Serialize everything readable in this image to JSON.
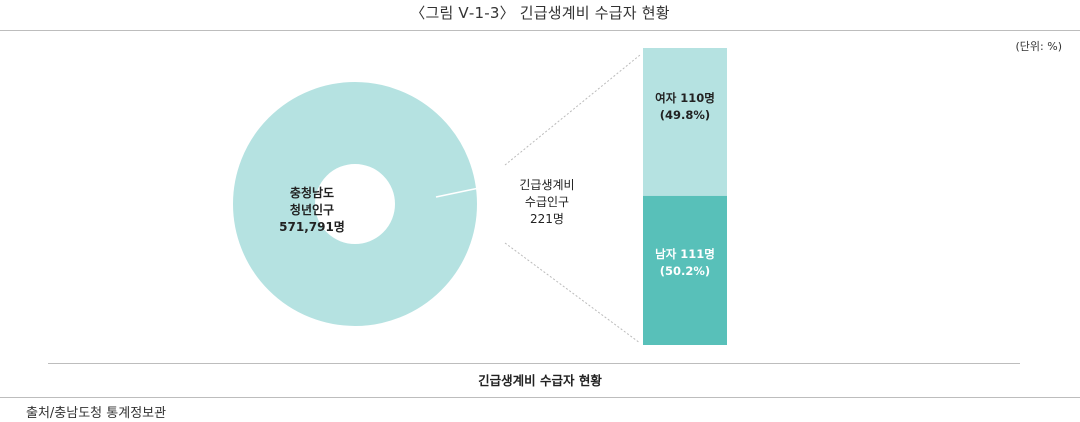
{
  "figure_title": "〈그림 Ⅴ-1-3〉 긴급생계비 수급자 현황",
  "unit_label": "(단위: %)",
  "caption": "긴급생계비 수급자 현황",
  "source": "출처/충남도청 통계정보관",
  "colors": {
    "light": "#b5e2e1",
    "dark": "#58c0b9",
    "connector": "#bbbbbb",
    "rule": "#bdbdbd"
  },
  "chart_data": [
    {
      "type": "pie",
      "style": "donut",
      "slices": [
        {
          "label_lines": [
            "충청남도",
            "청년인구",
            "571,791명"
          ],
          "value": 571791
        },
        {
          "label_lines": [
            "긴급생계비",
            "수급인구",
            "221명"
          ],
          "value": 221
        }
      ]
    },
    {
      "type": "bar",
      "stacked": true,
      "segments": [
        {
          "label_line1": "여자 110명",
          "label_line2": "(49.8%)",
          "count": 110,
          "percent": 49.8
        },
        {
          "label_line1": "남자 111명",
          "label_line2": "(50.2%)",
          "count": 111,
          "percent": 50.2
        }
      ]
    }
  ]
}
